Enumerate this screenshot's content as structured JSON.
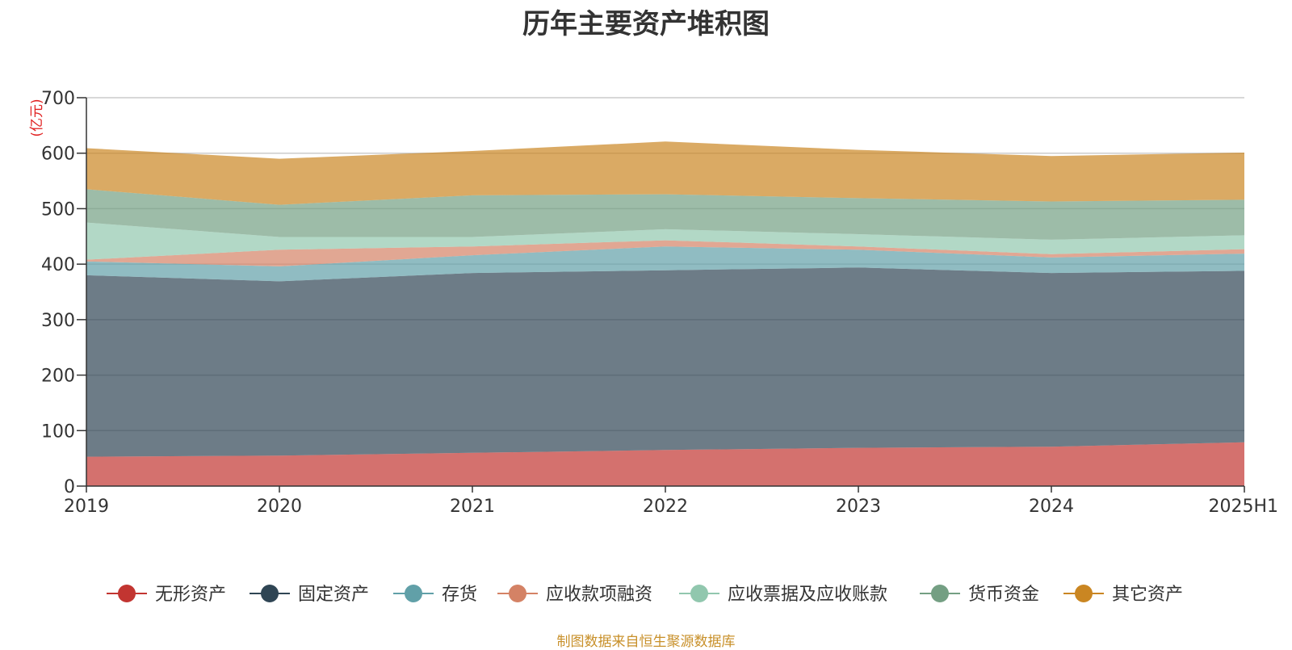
{
  "title": "历年主要资产堆积图",
  "footer": "制图数据来自恒生聚源数据库",
  "chart_data": {
    "type": "area",
    "stacked": true,
    "title": "历年主要资产堆积图",
    "y_unit": "(亿元)",
    "x": [
      "2019",
      "2020",
      "2021",
      "2022",
      "2023",
      "2024",
      "2025H1"
    ],
    "ylim": [
      0,
      700
    ],
    "yticks": [
      0,
      100,
      200,
      300,
      400,
      500,
      600,
      700
    ],
    "grid": true,
    "legend_position": "bottom",
    "series": [
      {
        "name": "无形资产",
        "color": "#c23531",
        "values": [
          53,
          55,
          60,
          65,
          69,
          71,
          79
        ]
      },
      {
        "name": "固定资产",
        "color": "#2f4554",
        "values": [
          327,
          314,
          324,
          324,
          325,
          313,
          309
        ]
      },
      {
        "name": "存货",
        "color": "#61a0a8",
        "values": [
          25,
          27,
          32,
          43,
          32,
          28,
          31
        ]
      },
      {
        "name": "应收款项融资",
        "color": "#d48265",
        "values": [
          3,
          30,
          16,
          11,
          6,
          6,
          8
        ]
      },
      {
        "name": "应收票据及应收账款",
        "color": "#91c7ae",
        "values": [
          67,
          23,
          17,
          20,
          22,
          26,
          25
        ]
      },
      {
        "name": "货币资金",
        "color": "#749f83",
        "values": [
          60,
          58,
          75,
          63,
          65,
          69,
          64
        ]
      },
      {
        "name": "其它资产",
        "color": "#ca8622",
        "values": [
          74,
          83,
          80,
          95,
          87,
          82,
          85
        ]
      }
    ]
  }
}
